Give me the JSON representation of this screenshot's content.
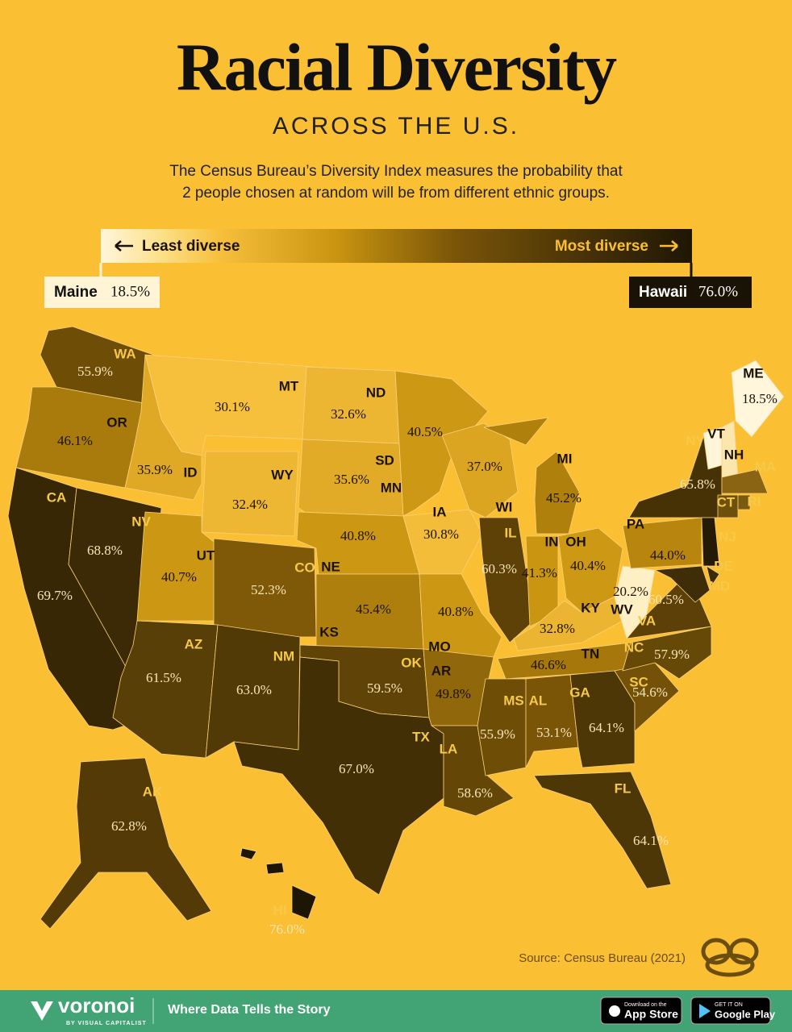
{
  "title": "Racial Diversity",
  "subtitle": "ACROSS THE U.S.",
  "description": [
    "The Census Bureau’s Diversity Index measures the probability that",
    "2 people chosen at random will be from different ethnic groups."
  ],
  "legend": {
    "low_label": "Least diverse",
    "high_label": "Most diverse",
    "min": {
      "name": "Maine",
      "value": 18.5,
      "label": "18.5%"
    },
    "max": {
      "name": "Hawaii",
      "value": 76.0,
      "label": "76.0%"
    }
  },
  "states": [
    {
      "abbr": "WA",
      "value": 55.9,
      "label": "55.9%"
    },
    {
      "abbr": "OR",
      "value": 46.1,
      "label": "46.1%"
    },
    {
      "abbr": "CA",
      "value": 69.7,
      "label": "69.7%"
    },
    {
      "abbr": "NV",
      "value": 68.8,
      "label": "68.8%"
    },
    {
      "abbr": "ID",
      "value": 35.9,
      "label": "35.9%"
    },
    {
      "abbr": "MT",
      "value": 30.1,
      "label": "30.1%"
    },
    {
      "abbr": "WY",
      "value": 32.4,
      "label": "32.4%"
    },
    {
      "abbr": "UT",
      "value": 40.7,
      "label": "40.7%"
    },
    {
      "abbr": "CO",
      "value": 52.3,
      "label": "52.3%"
    },
    {
      "abbr": "AZ",
      "value": 61.5,
      "label": "61.5%"
    },
    {
      "abbr": "NM",
      "value": 63.0,
      "label": "63.0%"
    },
    {
      "abbr": "ND",
      "value": 32.6,
      "label": "32.6%"
    },
    {
      "abbr": "SD",
      "value": 35.6,
      "label": "35.6%"
    },
    {
      "abbr": "NE",
      "value": 40.8,
      "label": "40.8%"
    },
    {
      "abbr": "KS",
      "value": 45.4,
      "label": "45.4%"
    },
    {
      "abbr": "OK",
      "value": 59.5,
      "label": "59.5%"
    },
    {
      "abbr": "TX",
      "value": 67.0,
      "label": "67.0%"
    },
    {
      "abbr": "MN",
      "value": 40.5,
      "label": "40.5%"
    },
    {
      "abbr": "IA",
      "value": 30.8,
      "label": "30.8%"
    },
    {
      "abbr": "MO",
      "value": 40.8,
      "label": "40.8%"
    },
    {
      "abbr": "AR",
      "value": 49.8,
      "label": "49.8%"
    },
    {
      "abbr": "LA",
      "value": 58.6,
      "label": "58.6%"
    },
    {
      "abbr": "WI",
      "value": 37.0,
      "label": "37.0%"
    },
    {
      "abbr": "IL",
      "value": 60.3,
      "label": "60.3%"
    },
    {
      "abbr": "MI",
      "value": 45.2,
      "label": "45.2%"
    },
    {
      "abbr": "IN",
      "value": 41.3,
      "label": "41.3%"
    },
    {
      "abbr": "OH",
      "value": 40.4,
      "label": "40.4%"
    },
    {
      "abbr": "KY",
      "value": 32.8,
      "label": "32.8%"
    },
    {
      "abbr": "TN",
      "value": 46.6,
      "label": "46.6%"
    },
    {
      "abbr": "MS",
      "value": 55.9,
      "label": "55.9%"
    },
    {
      "abbr": "AL",
      "value": 53.1,
      "label": "53.1%"
    },
    {
      "abbr": "GA",
      "value": 64.1,
      "label": "64.1%"
    },
    {
      "abbr": "FL",
      "value": 64.1,
      "label": "64.1%"
    },
    {
      "abbr": "SC",
      "value": 54.6,
      "label": "54.6%"
    },
    {
      "abbr": "NC",
      "value": 57.9,
      "label": "57.9%"
    },
    {
      "abbr": "VA",
      "value": 60.5,
      "label": "60.5%"
    },
    {
      "abbr": "WV",
      "value": 20.2,
      "label": "20.2%"
    },
    {
      "abbr": "PA",
      "value": 44.0,
      "label": "44.0%"
    },
    {
      "abbr": "NY",
      "value": 65.8,
      "label": "65.8%"
    },
    {
      "abbr": "ME",
      "value": 18.5,
      "label": "18.5%"
    },
    {
      "abbr": "AK",
      "value": 62.8,
      "label": "62.8%"
    },
    {
      "abbr": "HI",
      "value": 76.0,
      "label": "76.0%"
    },
    {
      "abbr": "VT",
      "color": "#fff5d9"
    },
    {
      "abbr": "NH",
      "color": "#fbe6ae"
    },
    {
      "abbr": "MA",
      "color": "#8a6412"
    },
    {
      "abbr": "CT",
      "color": "#6e4f0c"
    },
    {
      "abbr": "RI",
      "color": "#7a5a10"
    },
    {
      "abbr": "NJ",
      "color": "#241a05"
    },
    {
      "abbr": "DE",
      "color": "#3a2a07"
    },
    {
      "abbr": "MD",
      "color": "#3f2d08"
    }
  ],
  "source": "Source: Census Bureau (2021)",
  "footer": {
    "brand": "voronoi",
    "brand_sub": "BY VISUAL CAPITALIST",
    "tagline": "Where Data Tells the Story",
    "app_store_small": "Download on the",
    "app_store": "App Store",
    "google_small": "GET IT ON",
    "google": "Google Play"
  }
}
